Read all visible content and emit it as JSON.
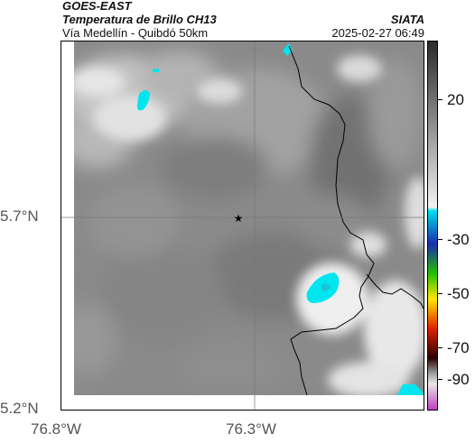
{
  "header": {
    "satellite": "GOES-EAST",
    "product": "Temperatura de Brillo CH13",
    "route": "Vía Medellín - Quibdó 50km",
    "agency": "SIATA",
    "datetime": "2025-02-27 06:49"
  },
  "axes": {
    "lat_ticks": [
      "5.7°N",
      "5.2°N"
    ],
    "lon_ticks": [
      "76.8°W",
      "76.3°W"
    ]
  },
  "colorbar": {
    "tick_labels": [
      "20",
      "-30",
      "-50",
      "-70",
      "-90"
    ],
    "colors": {
      "warm_top": "#2a2a2a",
      "warm_bottom": "#f2f2f2",
      "cyan": "#00e0ee",
      "blue": "#1a2bb0",
      "green": "#22c000",
      "yellow": "#ffe600",
      "red": "#e02000",
      "dark": "#2a0000",
      "gray": "#9a9a9a",
      "magenta": "#c040c0"
    }
  },
  "map": {
    "marker_icon": "star-icon",
    "cloud_color": "#00e5ee",
    "border_color": "#000000"
  }
}
